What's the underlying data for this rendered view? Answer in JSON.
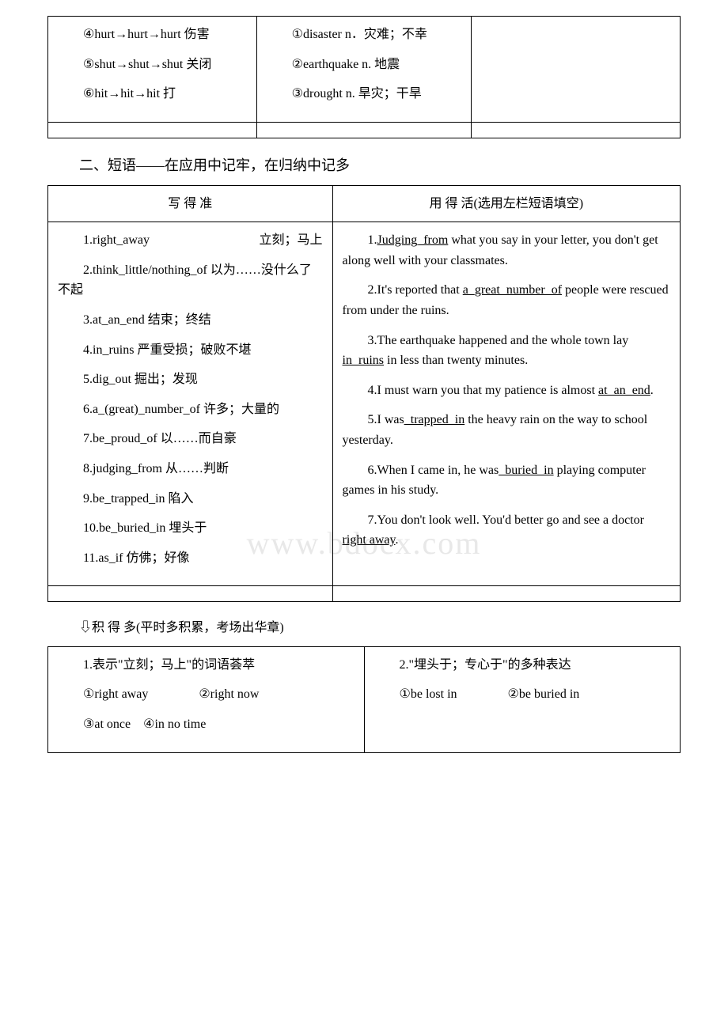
{
  "watermark": "www.bdocx.com",
  "table1": {
    "col1": {
      "item4": "④hurt→hurt→hurt 伤害",
      "item5": "⑤shut→shut→shut 关闭",
      "item6": "⑥hit→hit→hit 打"
    },
    "col2": {
      "item1": "①disaster n．灾难；不幸",
      "item2": "②earthquake n. 地震",
      "item3": "③drought n. 旱灾；干旱"
    }
  },
  "section2": {
    "heading": "二、短语——在应用中记牢，在归纳中记多"
  },
  "table2": {
    "header_left": "写 得 准",
    "header_right": "用 得 活(选用左栏短语填空)",
    "left": {
      "p1_a": "1.right_away",
      "p1_b": "立刻；马上",
      "p2": "2.think_little/nothing_of 以为……没什么了不起",
      "p3": "3.at_an_end 结束；终结",
      "p4": "4.in_ruins 严重受损；破败不堪",
      "p5": "5.dig_out 掘出；发现",
      "p6": "6.a_(great)_number_of 许多；大量的",
      "p7": "7.be_proud_of 以……而自豪",
      "p8": "8.judging_from 从……判断",
      "p9": "9.be_trapped_in 陷入",
      "p10": "10.be_buried_in 埋头于",
      "p11": "11.as_if 仿佛；好像"
    },
    "right": {
      "s1_a": "1.",
      "s1_b": "Judging_from",
      "s1_c": " what you say in your letter, you don't get along well with your classmates.",
      "s2_a": "2.It's reported that ",
      "s2_b": "a_great_number_of",
      "s2_c": " people were rescued from under the ruins.",
      "s3_a": "3.The earthquake happened and the whole town lay ",
      "s3_b": "in_ruins",
      "s3_c": " in less than twenty minutes.",
      "s4_a": "4.I must warn you that my patience is almost ",
      "s4_b": "at_an_end",
      "s4_c": ".",
      "s5_a": "5.I was",
      "s5_b": "_trapped_in",
      "s5_c": " the heavy rain on the way to school yesterday.",
      "s6_a": "6.When I came in, he was",
      "s6_b": "_buried_in",
      "s6_c": " playing computer games in his study.",
      "s7_a": "7.You don't look well. You'd better go and see a doctor ",
      "s7_b": "right away",
      "s7_c": "."
    }
  },
  "section3": {
    "heading": "⇩积 得 多(平时多积累，考场出华章)"
  },
  "table3": {
    "left": {
      "title": "1.表示\"立刻；马上\"的词语荟萃",
      "line1": "①right away    ②right now",
      "line2": "③at once ④in no time"
    },
    "right": {
      "title": "2.\"埋头于；专心于\"的多种表达",
      "line1": "①be lost in    ②be buried in"
    }
  }
}
